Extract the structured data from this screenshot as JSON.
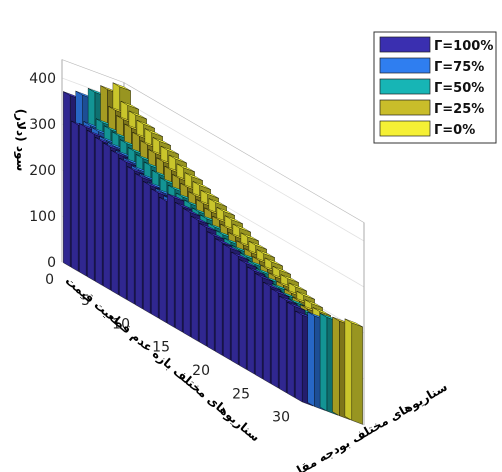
{
  "chart_data": {
    "type": "bar",
    "subtype": "3d-bar",
    "title": "",
    "zlabel": "سود (دلار)",
    "xlabel": "سناریوهای مختلف بازه عدم قطعیت قیمت",
    "ylabel": "سناریوهای مختلف بودجه مقاوم",
    "zlim": [
      0,
      450
    ],
    "z_ticks": [
      0,
      100,
      200,
      300,
      400
    ],
    "x_ticks": [
      0,
      5,
      10,
      15,
      20,
      25,
      30
    ],
    "x_tick_labels": [
      "0",
      "5",
      "10",
      "15",
      "20",
      "25",
      "30"
    ],
    "x_range": [
      1,
      30
    ],
    "grid": true,
    "legend_position": "top-right",
    "colors": [
      "#3a2fb0",
      "#2f7ef0",
      "#17b5b5",
      "#c9bd2a",
      "#f5f035"
    ],
    "series": [
      {
        "name": "Γ=100%",
        "color": "#3a2fb0",
        "values": [
          372,
          318,
          323,
          318,
          313,
          311,
          305,
          298,
          290,
          285,
          278,
          272,
          264,
          282,
          273,
          270,
          263,
          258,
          250,
          245,
          243,
          236,
          230,
          224,
          220,
          211,
          207,
          201,
          198,
          189
        ]
      },
      {
        "name": "Γ=75%",
        "color": "#2f7ef0",
        "values": [
          383,
          327,
          324,
          315,
          312,
          305,
          299,
          292,
          285,
          277,
          273,
          267,
          270,
          269,
          264,
          258,
          250,
          243,
          239,
          233,
          224,
          221,
          213,
          210,
          203,
          196,
          193,
          185,
          180,
          197
        ]
      },
      {
        "name": "Γ=50%",
        "color": "#17b5b5",
        "values": [
          399,
          343,
          338,
          335,
          328,
          321,
          316,
          310,
          302,
          296,
          290,
          283,
          278,
          271,
          266,
          258,
          252,
          246,
          240,
          234,
          228,
          221,
          214,
          208,
          201,
          196,
          188,
          182,
          177,
          204
        ]
      },
      {
        "name": "Γ=25%",
        "color": "#c9bd2a",
        "values": [
          415,
          380,
          370,
          362,
          354,
          346,
          337,
          329,
          321,
          313,
          304,
          296,
          289,
          281,
          273,
          266,
          258,
          250,
          243,
          236,
          228,
          221,
          213,
          206,
          199,
          192,
          185,
          178,
          176,
          206
        ]
      },
      {
        "name": "Γ=0%",
        "color": "#f5f035",
        "values": [
          431,
          401,
          390,
          380,
          372,
          363,
          354,
          345,
          336,
          327,
          318,
          309,
          301,
          292,
          284,
          276,
          267,
          259,
          251,
          243,
          235,
          227,
          219,
          211,
          203,
          196,
          188,
          181,
          178,
          212
        ]
      }
    ]
  }
}
